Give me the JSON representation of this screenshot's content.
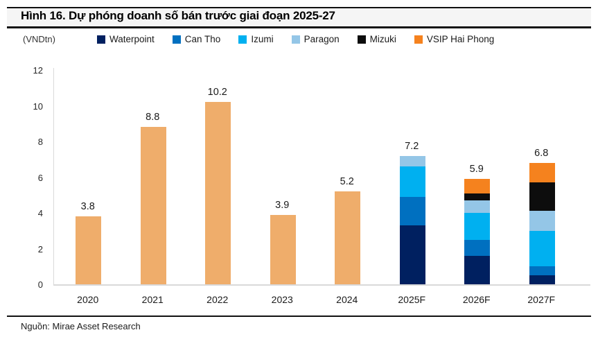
{
  "figure": {
    "title": "Hình 16. Dự phóng doanh số bán trước giai đoạn 2025-27",
    "unit_label": "(VNDtn)",
    "source": "Nguồn: Mirae Asset Research"
  },
  "legend": {
    "items": [
      {
        "label": "Waterpoint",
        "color": "#002060"
      },
      {
        "label": "Can Tho",
        "color": "#0070C0"
      },
      {
        "label": "Izumi",
        "color": "#00B0F0"
      },
      {
        "label": "Paragon",
        "color": "#94C6E7"
      },
      {
        "label": "Mizuki",
        "color": "#0D0D0D"
      },
      {
        "label": "VSIP Hai Phong",
        "color": "#F5821E"
      }
    ]
  },
  "chart_data": {
    "type": "bar",
    "stacked": true,
    "title": "Dự phóng doanh số bán trước giai đoạn 2025-27",
    "xlabel": "",
    "ylabel": "(VNDtn)",
    "ylim": [
      0,
      12
    ],
    "yticks": [
      0,
      2,
      4,
      6,
      8,
      10,
      12
    ],
    "grid": false,
    "legend_position": "top",
    "categories": [
      "2020",
      "2021",
      "2022",
      "2023",
      "2024",
      "2025F",
      "2026F",
      "2027F"
    ],
    "totals": [
      3.8,
      8.8,
      10.2,
      3.9,
      5.2,
      7.2,
      5.9,
      6.8
    ],
    "total_labels": [
      "3.8",
      "8.8",
      "10.2",
      "3.9",
      "5.2",
      "7.2",
      "5.9",
      "6.8"
    ],
    "historical": {
      "note": "single-color presales bars for 2020-2024",
      "color": "#EFAD6B",
      "categories": [
        "2020",
        "2021",
        "2022",
        "2023",
        "2024"
      ],
      "values": [
        3.8,
        8.8,
        10.2,
        3.9,
        5.2
      ]
    },
    "series": [
      {
        "name": "Waterpoint",
        "color": "#002060",
        "values": [
          0,
          0,
          0,
          0,
          0,
          3.3,
          1.6,
          0.5
        ]
      },
      {
        "name": "Can Tho",
        "color": "#0070C0",
        "values": [
          0,
          0,
          0,
          0,
          0,
          1.6,
          0.9,
          0.5
        ]
      },
      {
        "name": "Izumi",
        "color": "#00B0F0",
        "values": [
          0,
          0,
          0,
          0,
          0,
          1.7,
          1.5,
          2.0
        ]
      },
      {
        "name": "Paragon",
        "color": "#94C6E7",
        "values": [
          0,
          0,
          0,
          0,
          0,
          0.6,
          0.7,
          1.1
        ]
      },
      {
        "name": "Mizuki",
        "color": "#0D0D0D",
        "values": [
          0,
          0,
          0,
          0,
          0,
          0,
          0.4,
          1.6
        ]
      },
      {
        "name": "VSIP Hai Phong",
        "color": "#F5821E",
        "values": [
          0,
          0,
          0,
          0,
          0,
          0,
          0.8,
          1.1
        ]
      }
    ]
  }
}
